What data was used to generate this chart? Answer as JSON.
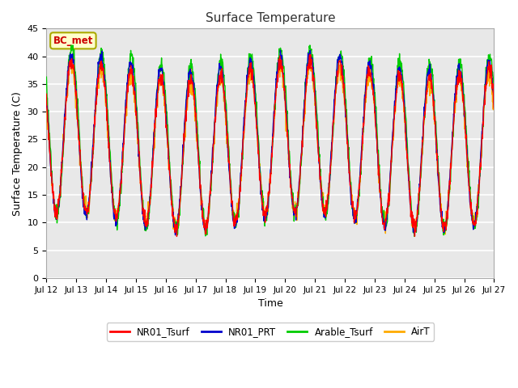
{
  "title": "Surface Temperature",
  "xlabel": "Time",
  "ylabel": "Surface Temperature (C)",
  "ylim": [
    0,
    45
  ],
  "yticks": [
    0,
    5,
    10,
    15,
    20,
    25,
    30,
    35,
    40,
    45
  ],
  "x_labels": [
    "Jul 12",
    "Jul 13",
    "Jul 14",
    "Jul 15",
    "Jul 16",
    "Jul 17",
    "Jul 18",
    "Jul 19",
    "Jul 20",
    "Jul 21",
    "Jul 22",
    "Jul 23",
    "Jul 24",
    "Jul 25",
    "Jul 26",
    "Jul 27"
  ],
  "legend_labels": [
    "NR01_Tsurf",
    "NR01_PRT",
    "Arable_Tsurf",
    "AirT"
  ],
  "line_colors": [
    "#ff0000",
    "#0000cc",
    "#00cc00",
    "#ffaa00"
  ],
  "annotation_text": "BC_met",
  "annotation_color": "#cc0000",
  "annotation_bg": "#ffffcc",
  "annotation_border": "#aaaa00",
  "fig_bg": "#ffffff",
  "plot_bg": "#e8e8e8",
  "grid_color": "#ffffff",
  "n_points": 1440,
  "days": 15
}
